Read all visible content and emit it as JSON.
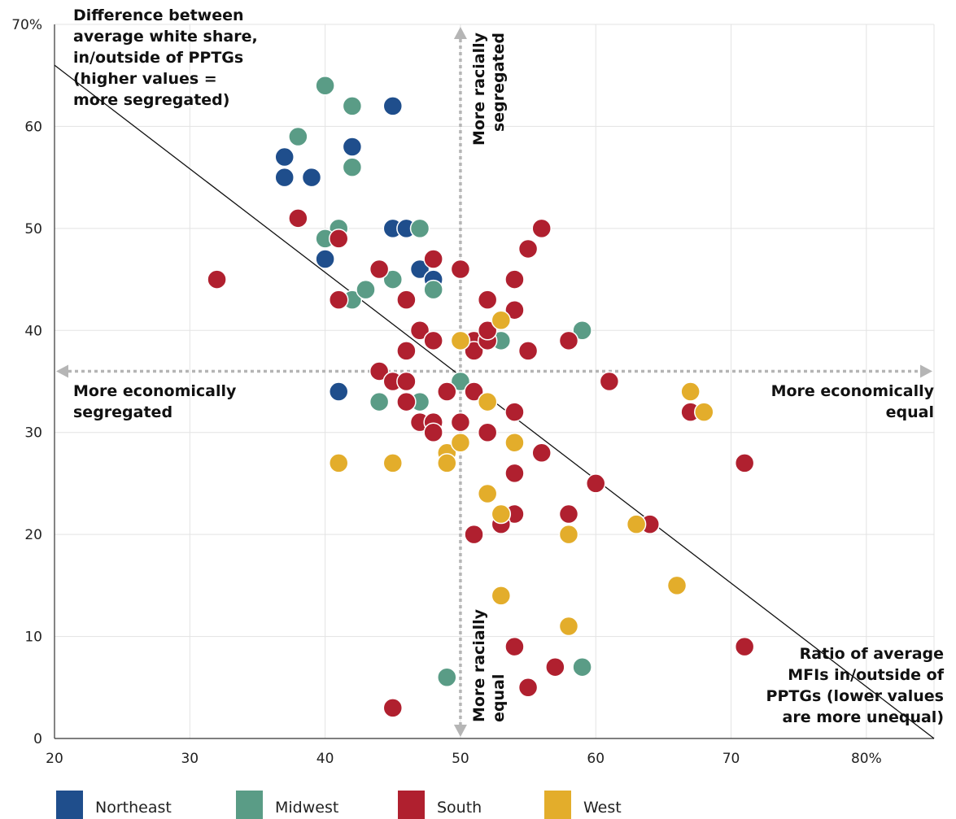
{
  "chart_data": {
    "type": "scatter",
    "x_ticks": [
      "20",
      "30",
      "40",
      "50",
      "60",
      "70",
      "80%"
    ],
    "y_ticks": [
      "0",
      "10",
      "20",
      "30",
      "40",
      "50",
      "60",
      "70%"
    ],
    "xlim": [
      20,
      85
    ],
    "ylim": [
      0,
      70
    ],
    "grid": true,
    "reference_x": 50,
    "reference_y": 36,
    "trendline": [
      [
        20,
        66
      ],
      [
        85,
        0
      ]
    ],
    "annotations": {
      "y_title": [
        "Difference  between",
        "average white share,",
        "in/outside of PPTGs",
        "(higher values =",
        "more segregated)"
      ],
      "x_title": [
        "Ratio of average",
        "MFIs in/outside of",
        "PPTGs (lower values",
        "are more unequal)"
      ],
      "left": [
        "More economically",
        "segregated"
      ],
      "right": [
        "More economically",
        "equal"
      ],
      "top": [
        "More racially",
        "segregated"
      ],
      "bottom": [
        "More racially",
        "equal"
      ]
    },
    "legend_position": "bottom",
    "series": [
      {
        "name": "Northeast",
        "color": "#1f4e8c",
        "points": [
          [
            37,
            57
          ],
          [
            37,
            55
          ],
          [
            39,
            55
          ],
          [
            42,
            58
          ],
          [
            45,
            62
          ],
          [
            45,
            50
          ],
          [
            46,
            50
          ],
          [
            40,
            47
          ],
          [
            47,
            46
          ],
          [
            48,
            45
          ],
          [
            41,
            34
          ]
        ]
      },
      {
        "name": "Midwest",
        "color": "#5a9c86",
        "points": [
          [
            40,
            64
          ],
          [
            42,
            62
          ],
          [
            38,
            59
          ],
          [
            42,
            56
          ],
          [
            41,
            50
          ],
          [
            40,
            49
          ],
          [
            47,
            50
          ],
          [
            42,
            43
          ],
          [
            43,
            44
          ],
          [
            45,
            45
          ],
          [
            48,
            44
          ],
          [
            59,
            40
          ],
          [
            53,
            39
          ],
          [
            44,
            33
          ],
          [
            47,
            33
          ],
          [
            50,
            35
          ],
          [
            49,
            6
          ],
          [
            59,
            7
          ]
        ]
      },
      {
        "name": "South",
        "color": "#b0202f",
        "points": [
          [
            32,
            45
          ],
          [
            38,
            51
          ],
          [
            41,
            49
          ],
          [
            41,
            43
          ],
          [
            44,
            46
          ],
          [
            46,
            43
          ],
          [
            48,
            47
          ],
          [
            50,
            46
          ],
          [
            56,
            50
          ],
          [
            55,
            48
          ],
          [
            54,
            45
          ],
          [
            52,
            43
          ],
          [
            54,
            42
          ],
          [
            47,
            40
          ],
          [
            48,
            39
          ],
          [
            46,
            38
          ],
          [
            51,
            39
          ],
          [
            51,
            38
          ],
          [
            52,
            39
          ],
          [
            52,
            40
          ],
          [
            55,
            38
          ],
          [
            58,
            39
          ],
          [
            44,
            36
          ],
          [
            45,
            35
          ],
          [
            46,
            35
          ],
          [
            46,
            33
          ],
          [
            49,
            34
          ],
          [
            51,
            34
          ],
          [
            54,
            32
          ],
          [
            47,
            31
          ],
          [
            48,
            31
          ],
          [
            48,
            30
          ],
          [
            50,
            31
          ],
          [
            52,
            30
          ],
          [
            56,
            28
          ],
          [
            54,
            26
          ],
          [
            61,
            35
          ],
          [
            67,
            32
          ],
          [
            71,
            27
          ],
          [
            60,
            25
          ],
          [
            58,
            22
          ],
          [
            54,
            22
          ],
          [
            53,
            21
          ],
          [
            51,
            20
          ],
          [
            64,
            21
          ],
          [
            54,
            9
          ],
          [
            57,
            7
          ],
          [
            55,
            5
          ],
          [
            45,
            3
          ],
          [
            71,
            9
          ]
        ]
      },
      {
        "name": "West",
        "color": "#e3ad2b",
        "points": [
          [
            41,
            27
          ],
          [
            45,
            27
          ],
          [
            49,
            28
          ],
          [
            49,
            27
          ],
          [
            50,
            29
          ],
          [
            50,
            39
          ],
          [
            53,
            41
          ],
          [
            52,
            33
          ],
          [
            54,
            29
          ],
          [
            52,
            24
          ],
          [
            53,
            22
          ],
          [
            58,
            20
          ],
          [
            63,
            21
          ],
          [
            66,
            15
          ],
          [
            67,
            34
          ],
          [
            68,
            32
          ],
          [
            53,
            14
          ],
          [
            58,
            11
          ]
        ]
      }
    ]
  }
}
